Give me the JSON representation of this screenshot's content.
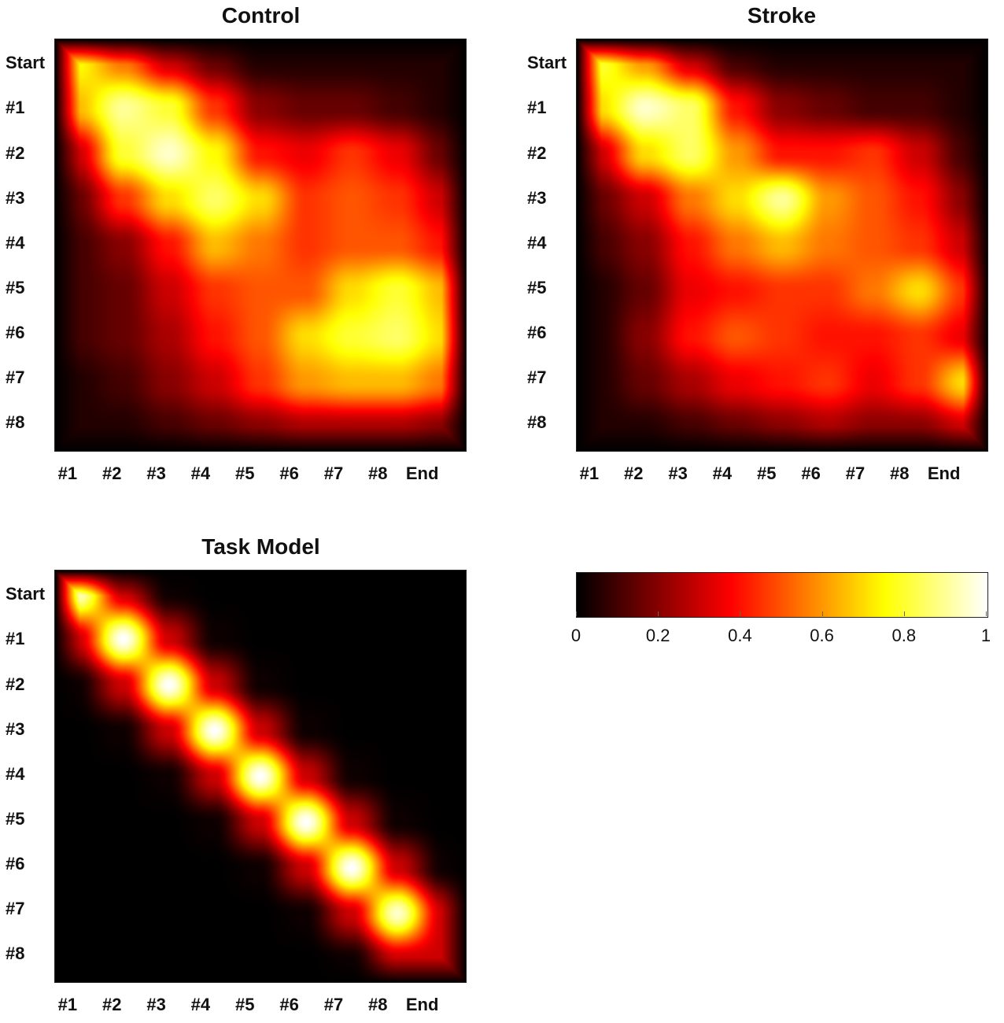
{
  "chart_data": [
    {
      "type": "heatmap",
      "title": "Control",
      "y_labels": [
        "Start",
        "#1",
        "#2",
        "#3",
        "#4",
        "#5",
        "#6",
        "#7",
        "#8"
      ],
      "x_labels": [
        "#1",
        "#2",
        "#3",
        "#4",
        "#5",
        "#6",
        "#7",
        "#8",
        "End"
      ],
      "value_range": [
        0,
        1
      ],
      "values": [
        [
          0.75,
          0.55,
          0.3,
          0.15,
          0.05,
          0.05,
          0.05,
          0.05,
          0.05
        ],
        [
          0.65,
          0.9,
          0.8,
          0.45,
          0.2,
          0.15,
          0.15,
          0.1,
          0.05
        ],
        [
          0.3,
          0.8,
          0.95,
          0.75,
          0.4,
          0.35,
          0.45,
          0.35,
          0.15
        ],
        [
          0.15,
          0.45,
          0.7,
          0.85,
          0.7,
          0.45,
          0.5,
          0.45,
          0.3
        ],
        [
          0.1,
          0.2,
          0.4,
          0.65,
          0.55,
          0.45,
          0.5,
          0.5,
          0.4
        ],
        [
          0.1,
          0.15,
          0.3,
          0.45,
          0.5,
          0.5,
          0.7,
          0.8,
          0.65
        ],
        [
          0.1,
          0.15,
          0.25,
          0.4,
          0.5,
          0.7,
          0.8,
          0.85,
          0.7
        ],
        [
          0.05,
          0.1,
          0.2,
          0.3,
          0.45,
          0.6,
          0.65,
          0.65,
          0.55
        ],
        [
          0.05,
          0.05,
          0.1,
          0.15,
          0.2,
          0.25,
          0.25,
          0.25,
          0.2
        ]
      ]
    },
    {
      "type": "heatmap",
      "title": "Stroke",
      "y_labels": [
        "Start",
        "#1",
        "#2",
        "#3",
        "#4",
        "#5",
        "#6",
        "#7",
        "#8"
      ],
      "x_labels": [
        "#1",
        "#2",
        "#3",
        "#4",
        "#5",
        "#6",
        "#7",
        "#8",
        "End"
      ],
      "value_range": [
        0,
        1
      ],
      "values": [
        [
          0.8,
          0.6,
          0.3,
          0.1,
          0.05,
          0.05,
          0.05,
          0.05,
          0.05
        ],
        [
          0.7,
          0.95,
          0.85,
          0.4,
          0.2,
          0.15,
          0.1,
          0.1,
          0.05
        ],
        [
          0.3,
          0.7,
          0.85,
          0.6,
          0.4,
          0.4,
          0.45,
          0.3,
          0.1
        ],
        [
          0.15,
          0.3,
          0.55,
          0.7,
          0.9,
          0.6,
          0.5,
          0.4,
          0.2
        ],
        [
          0.1,
          0.2,
          0.4,
          0.55,
          0.65,
          0.55,
          0.5,
          0.45,
          0.3
        ],
        [
          0.05,
          0.15,
          0.35,
          0.4,
          0.45,
          0.45,
          0.55,
          0.7,
          0.45
        ],
        [
          0.05,
          0.2,
          0.4,
          0.5,
          0.45,
          0.4,
          0.4,
          0.45,
          0.35
        ],
        [
          0.05,
          0.15,
          0.25,
          0.35,
          0.4,
          0.45,
          0.35,
          0.45,
          0.7
        ],
        [
          0.05,
          0.05,
          0.1,
          0.15,
          0.2,
          0.25,
          0.2,
          0.2,
          0.3
        ]
      ]
    },
    {
      "type": "heatmap",
      "title": "Task Model",
      "y_labels": [
        "Start",
        "#1",
        "#2",
        "#3",
        "#4",
        "#5",
        "#6",
        "#7",
        "#8"
      ],
      "x_labels": [
        "#1",
        "#2",
        "#3",
        "#4",
        "#5",
        "#6",
        "#7",
        "#8",
        "End"
      ],
      "value_range": [
        0,
        1
      ],
      "values": [
        [
          0.95,
          0.3,
          0.02,
          0.0,
          0.0,
          0.0,
          0.0,
          0.0,
          0.0
        ],
        [
          0.3,
          1.0,
          0.3,
          0.02,
          0.0,
          0.0,
          0.0,
          0.0,
          0.0
        ],
        [
          0.02,
          0.3,
          1.0,
          0.3,
          0.02,
          0.0,
          0.0,
          0.0,
          0.0
        ],
        [
          0.0,
          0.02,
          0.3,
          1.0,
          0.3,
          0.02,
          0.0,
          0.0,
          0.0
        ],
        [
          0.0,
          0.0,
          0.02,
          0.3,
          1.0,
          0.3,
          0.02,
          0.0,
          0.0
        ],
        [
          0.0,
          0.0,
          0.0,
          0.02,
          0.3,
          1.0,
          0.3,
          0.02,
          0.0
        ],
        [
          0.0,
          0.0,
          0.0,
          0.0,
          0.02,
          0.3,
          1.0,
          0.3,
          0.02
        ],
        [
          0.0,
          0.0,
          0.0,
          0.0,
          0.0,
          0.02,
          0.3,
          0.95,
          0.3
        ],
        [
          0.0,
          0.0,
          0.0,
          0.0,
          0.0,
          0.0,
          0.02,
          0.3,
          0.3
        ]
      ]
    }
  ],
  "colorbar": {
    "colormap": "hot",
    "range": [
      0,
      1
    ],
    "ticks": [
      "0",
      "0.2",
      "0.4",
      "0.6",
      "0.8",
      "1"
    ]
  }
}
